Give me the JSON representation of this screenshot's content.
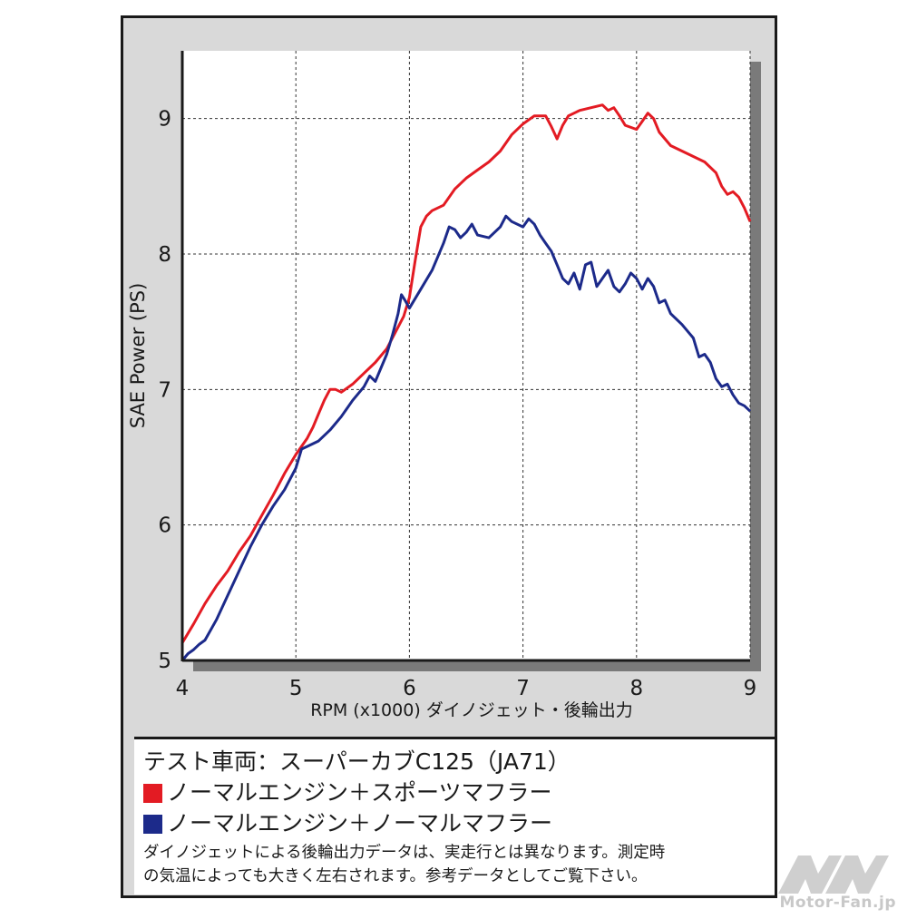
{
  "chart_data": {
    "type": "line",
    "xlabel": "RPM (x1000) ダイノジェット・後輪出力",
    "ylabel": "SAE Power (PS)",
    "xlim": [
      4,
      9
    ],
    "ylim": [
      5,
      9.5
    ],
    "x_ticks": [
      "4",
      "5",
      "6",
      "7",
      "8",
      "9"
    ],
    "y_ticks": [
      "5",
      "6",
      "7",
      "8",
      "9"
    ],
    "grid": "dashed",
    "series": [
      {
        "name": "ノーマルエンジン＋スポーツマフラー",
        "color": "#e31b23",
        "points": [
          [
            4.0,
            5.13
          ],
          [
            4.1,
            5.27
          ],
          [
            4.2,
            5.42
          ],
          [
            4.3,
            5.55
          ],
          [
            4.4,
            5.66
          ],
          [
            4.5,
            5.8
          ],
          [
            4.6,
            5.92
          ],
          [
            4.7,
            6.07
          ],
          [
            4.8,
            6.22
          ],
          [
            4.9,
            6.38
          ],
          [
            5.0,
            6.52
          ],
          [
            5.1,
            6.64
          ],
          [
            5.15,
            6.72
          ],
          [
            5.2,
            6.82
          ],
          [
            5.25,
            6.92
          ],
          [
            5.3,
            7.0
          ],
          [
            5.35,
            7.0
          ],
          [
            5.4,
            6.98
          ],
          [
            5.5,
            7.04
          ],
          [
            5.6,
            7.12
          ],
          [
            5.7,
            7.2
          ],
          [
            5.8,
            7.3
          ],
          [
            5.9,
            7.46
          ],
          [
            5.95,
            7.54
          ],
          [
            6.0,
            7.68
          ],
          [
            6.05,
            7.95
          ],
          [
            6.1,
            8.2
          ],
          [
            6.15,
            8.28
          ],
          [
            6.2,
            8.32
          ],
          [
            6.3,
            8.36
          ],
          [
            6.4,
            8.48
          ],
          [
            6.5,
            8.56
          ],
          [
            6.6,
            8.62
          ],
          [
            6.7,
            8.68
          ],
          [
            6.8,
            8.76
          ],
          [
            6.9,
            8.88
          ],
          [
            7.0,
            8.96
          ],
          [
            7.1,
            9.02
          ],
          [
            7.2,
            9.02
          ],
          [
            7.25,
            8.94
          ],
          [
            7.3,
            8.85
          ],
          [
            7.35,
            8.95
          ],
          [
            7.4,
            9.02
          ],
          [
            7.5,
            9.06
          ],
          [
            7.6,
            9.08
          ],
          [
            7.7,
            9.1
          ],
          [
            7.75,
            9.06
          ],
          [
            7.8,
            9.08
          ],
          [
            7.85,
            9.02
          ],
          [
            7.9,
            8.95
          ],
          [
            8.0,
            8.92
          ],
          [
            8.05,
            8.98
          ],
          [
            8.1,
            9.04
          ],
          [
            8.15,
            9.0
          ],
          [
            8.2,
            8.9
          ],
          [
            8.3,
            8.8
          ],
          [
            8.4,
            8.76
          ],
          [
            8.5,
            8.72
          ],
          [
            8.6,
            8.68
          ],
          [
            8.7,
            8.6
          ],
          [
            8.75,
            8.5
          ],
          [
            8.8,
            8.44
          ],
          [
            8.85,
            8.46
          ],
          [
            8.9,
            8.42
          ],
          [
            8.95,
            8.34
          ],
          [
            9.0,
            8.24
          ]
        ]
      },
      {
        "name": "ノーマルエンジン＋ノーマルマフラー",
        "color": "#1c2a8a",
        "points": [
          [
            4.0,
            5.0
          ],
          [
            4.05,
            5.05
          ],
          [
            4.1,
            5.08
          ],
          [
            4.15,
            5.12
          ],
          [
            4.2,
            5.15
          ],
          [
            4.3,
            5.3
          ],
          [
            4.4,
            5.48
          ],
          [
            4.5,
            5.66
          ],
          [
            4.6,
            5.84
          ],
          [
            4.7,
            6.0
          ],
          [
            4.8,
            6.14
          ],
          [
            4.9,
            6.26
          ],
          [
            5.0,
            6.42
          ],
          [
            5.05,
            6.56
          ],
          [
            5.1,
            6.58
          ],
          [
            5.2,
            6.62
          ],
          [
            5.3,
            6.7
          ],
          [
            5.4,
            6.8
          ],
          [
            5.5,
            6.92
          ],
          [
            5.6,
            7.02
          ],
          [
            5.65,
            7.1
          ],
          [
            5.7,
            7.06
          ],
          [
            5.8,
            7.26
          ],
          [
            5.85,
            7.4
          ],
          [
            5.9,
            7.56
          ],
          [
            5.93,
            7.7
          ],
          [
            5.96,
            7.66
          ],
          [
            6.0,
            7.6
          ],
          [
            6.1,
            7.74
          ],
          [
            6.2,
            7.88
          ],
          [
            6.3,
            8.08
          ],
          [
            6.35,
            8.2
          ],
          [
            6.4,
            8.18
          ],
          [
            6.45,
            8.12
          ],
          [
            6.5,
            8.16
          ],
          [
            6.55,
            8.22
          ],
          [
            6.6,
            8.14
          ],
          [
            6.7,
            8.12
          ],
          [
            6.8,
            8.2
          ],
          [
            6.85,
            8.28
          ],
          [
            6.9,
            8.24
          ],
          [
            7.0,
            8.2
          ],
          [
            7.05,
            8.26
          ],
          [
            7.1,
            8.22
          ],
          [
            7.15,
            8.14
          ],
          [
            7.2,
            8.08
          ],
          [
            7.25,
            8.02
          ],
          [
            7.3,
            7.92
          ],
          [
            7.35,
            7.82
          ],
          [
            7.4,
            7.78
          ],
          [
            7.45,
            7.86
          ],
          [
            7.5,
            7.74
          ],
          [
            7.55,
            7.92
          ],
          [
            7.6,
            7.94
          ],
          [
            7.65,
            7.76
          ],
          [
            7.7,
            7.82
          ],
          [
            7.75,
            7.88
          ],
          [
            7.8,
            7.76
          ],
          [
            7.85,
            7.72
          ],
          [
            7.9,
            7.78
          ],
          [
            7.95,
            7.86
          ],
          [
            8.0,
            7.82
          ],
          [
            8.05,
            7.74
          ],
          [
            8.1,
            7.82
          ],
          [
            8.15,
            7.76
          ],
          [
            8.2,
            7.64
          ],
          [
            8.25,
            7.66
          ],
          [
            8.3,
            7.56
          ],
          [
            8.4,
            7.48
          ],
          [
            8.5,
            7.38
          ],
          [
            8.55,
            7.24
          ],
          [
            8.6,
            7.26
          ],
          [
            8.65,
            7.2
          ],
          [
            8.7,
            7.08
          ],
          [
            8.75,
            7.02
          ],
          [
            8.8,
            7.04
          ],
          [
            8.85,
            6.96
          ],
          [
            8.9,
            6.9
          ],
          [
            8.95,
            6.88
          ],
          [
            9.0,
            6.84
          ]
        ]
      }
    ]
  },
  "legend": {
    "vehicle_label": "テスト車両：スーパーカブC125（JA71）",
    "items": [
      {
        "label": "ノーマルエンジン＋スポーツマフラー",
        "color": "#e31b23"
      },
      {
        "label": "ノーマルエンジン＋ノーマルマフラー",
        "color": "#1c2a8a"
      }
    ],
    "note_line1": "ダイノジェットによる後輪出力データは、実走行とは異なります。測定時",
    "note_line2": "の気温によっても大きく左右されます。参考データとしてご覧下さい。"
  },
  "watermark": {
    "text": "Motor-Fan.jp"
  }
}
